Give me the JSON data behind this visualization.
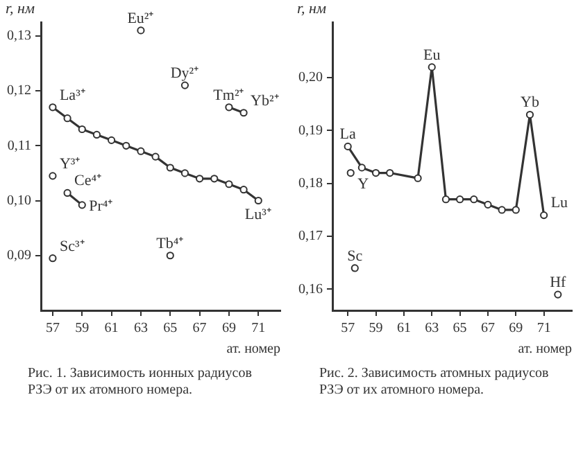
{
  "chart_data": [
    {
      "type": "line",
      "xlabel": "ат. номер",
      "ylabel": "r, нм",
      "marker": "circle",
      "grid": false,
      "xlim": [
        56.2,
        72.5
      ],
      "xticks": [
        57,
        59,
        61,
        63,
        65,
        67,
        69,
        71
      ],
      "ylim": [
        0.08,
        0.1325
      ],
      "yticks": [
        {
          "value": 0.09,
          "label": "0,09"
        },
        {
          "value": 0.1,
          "label": "0,10"
        },
        {
          "value": 0.11,
          "label": "0,11"
        },
        {
          "value": 0.12,
          "label": "0,12"
        },
        {
          "value": 0.13,
          "label": "0,13"
        }
      ],
      "series": [
        {
          "type": "line",
          "color": "#333333",
          "x": [
            57,
            58,
            59,
            60,
            61,
            62,
            63,
            64,
            65,
            66,
            67,
            68,
            69,
            70,
            71
          ],
          "values": [
            0.117,
            0.115,
            0.113,
            0.112,
            0.111,
            0.11,
            0.109,
            0.108,
            0.106,
            0.105,
            0.104,
            0.104,
            0.103,
            0.102,
            0.1
          ]
        },
        {
          "type": "scatter",
          "color": "#333333",
          "x": [
            63
          ],
          "values": [
            0.131
          ]
        },
        {
          "type": "scatter",
          "color": "#333333",
          "x": [
            66
          ],
          "values": [
            0.121
          ]
        },
        {
          "type": "line",
          "color": "#333333",
          "x": [
            69,
            70
          ],
          "values": [
            0.117,
            0.116
          ]
        },
        {
          "type": "scatter",
          "color": "#333333",
          "x": [
            57
          ],
          "values": [
            0.1045
          ]
        },
        {
          "type": "line",
          "color": "#333333",
          "x": [
            58,
            59
          ],
          "values": [
            0.1014,
            0.0992
          ]
        },
        {
          "type": "scatter",
          "color": "#333333",
          "x": [
            57
          ],
          "values": [
            0.0895
          ]
        },
        {
          "type": "scatter",
          "color": "#333333",
          "x": [
            65
          ],
          "values": [
            0.09
          ]
        }
      ],
      "annotations": [
        {
          "text": "La³⁺",
          "x": 57,
          "y": 0.117
        },
        {
          "text": "Eu²⁺",
          "x": 63,
          "y": 0.131
        },
        {
          "text": "Dy²⁺",
          "x": 66,
          "y": 0.121
        },
        {
          "text": "Tm²⁺",
          "x": 69,
          "y": 0.117
        },
        {
          "text": "Yb²⁺",
          "x": 70,
          "y": 0.116
        },
        {
          "text": "Lu³⁺",
          "x": 71,
          "y": 0.1
        },
        {
          "text": "Y³⁺",
          "x": 57,
          "y": 0.1045
        },
        {
          "text": "Ce⁴⁺",
          "x": 58,
          "y": 0.1014
        },
        {
          "text": "Pr⁴⁺",
          "x": 59,
          "y": 0.0992
        },
        {
          "text": "Sc³⁺",
          "x": 57,
          "y": 0.0895
        },
        {
          "text": "Tb⁴⁺",
          "x": 65,
          "y": 0.09
        },
        "Рис. 1. Зависимость ионных радиусов РЗЭ от их атомного номера."
      ]
    },
    {
      "type": "line",
      "xlabel": "ат. номер",
      "ylabel": "r, нм",
      "marker": "circle",
      "grid": false,
      "xlim": [
        55.9,
        73
      ],
      "xticks": [
        57,
        59,
        61,
        63,
        65,
        67,
        69,
        71
      ],
      "ylim": [
        0.156,
        0.2105
      ],
      "yticks": [
        {
          "value": 0.16,
          "label": "0,16"
        },
        {
          "value": 0.17,
          "label": "0,17"
        },
        {
          "value": 0.18,
          "label": "0,18"
        },
        {
          "value": 0.19,
          "label": "0,19"
        },
        {
          "value": 0.2,
          "label": "0,20"
        }
      ],
      "series": [
        {
          "type": "line",
          "color": "#333333",
          "x": [
            57,
            58,
            59,
            60,
            62,
            63,
            64,
            65,
            66,
            67,
            68,
            69,
            70,
            71
          ],
          "values": [
            0.187,
            0.183,
            0.182,
            0.182,
            0.181,
            0.202,
            0.177,
            0.177,
            0.177,
            0.176,
            0.175,
            0.175,
            0.193,
            0.174
          ]
        },
        {
          "type": "scatter",
          "color": "#333333",
          "x": [
            57.2
          ],
          "values": [
            0.182
          ]
        },
        {
          "type": "scatter",
          "color": "#333333",
          "x": [
            57.5
          ],
          "values": [
            0.164
          ]
        },
        {
          "type": "scatter",
          "color": "#333333",
          "x": [
            72
          ],
          "values": [
            0.159
          ]
        }
      ],
      "annotations": [
        {
          "text": "La",
          "x": 57,
          "y": 0.187
        },
        {
          "text": "Eu",
          "x": 63,
          "y": 0.202
        },
        {
          "text": "Yb",
          "x": 70,
          "y": 0.193
        },
        {
          "text": "Lu",
          "x": 71,
          "y": 0.174
        },
        {
          "text": "Y",
          "x": 57.2,
          "y": 0.182
        },
        {
          "text": "Sc",
          "x": 57.5,
          "y": 0.164
        },
        {
          "text": "Hf",
          "x": 72,
          "y": 0.159
        },
        "Рис. 2. Зависимость атомных радиусов РЗЭ от их атомного номера."
      ]
    }
  ]
}
